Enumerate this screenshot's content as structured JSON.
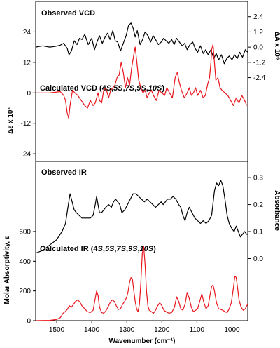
{
  "chart_data": [
    {
      "type": "line",
      "panel": "top",
      "title_observed": "Observed VCD",
      "title_calc_prefix": "Calculated VCD (4",
      "title_calc_config": [
        "S",
        "5S",
        "7S",
        "9S",
        "10S"
      ],
      "title_calc_suffix": ")",
      "left_axis_label": "Δε x 10³",
      "right_axis_label": "ΔA x 10⁶",
      "left_ticks": [
        "24",
        "12",
        "0",
        "-12",
        "-24"
      ],
      "left_tick_values": [
        24,
        12,
        0,
        -12,
        -24
      ],
      "left_ylim": [
        -27,
        36
      ],
      "right_ticks": [
        "2.4",
        "1.2",
        "0.0",
        "-1.2",
        "-2.4"
      ],
      "right_tick_values": [
        2.4,
        1.2,
        0.0,
        -1.2,
        -2.4
      ],
      "right_ylim": [
        -9.0,
        3.6
      ],
      "series": [
        {
          "role": "observed",
          "color": "#000000",
          "axis": "right",
          "x": [
            1560,
            1540,
            1520,
            1505,
            1490,
            1480,
            1470,
            1465,
            1458,
            1450,
            1442,
            1435,
            1428,
            1420,
            1410,
            1400,
            1392,
            1385,
            1378,
            1370,
            1362,
            1355,
            1348,
            1340,
            1333,
            1326,
            1318,
            1310,
            1302,
            1295,
            1288,
            1282,
            1276,
            1270,
            1262,
            1255,
            1248,
            1240,
            1232,
            1225,
            1218,
            1210,
            1202,
            1195,
            1188,
            1180,
            1172,
            1165,
            1158,
            1150,
            1142,
            1135,
            1128,
            1120,
            1112,
            1105,
            1098,
            1090,
            1082,
            1075,
            1068,
            1060,
            1052,
            1045,
            1038,
            1030,
            1022,
            1015,
            1008,
            1000,
            993,
            985,
            978,
            970,
            962,
            955
          ],
          "y": [
            0.0,
            0.1,
            0.0,
            0.05,
            0.15,
            0.3,
            -0.1,
            -0.6,
            -0.3,
            0.5,
            0.2,
            0.7,
            0.6,
            1.0,
            0.2,
            0.7,
            -0.2,
            0.4,
            0.9,
            0.3,
            0.8,
            1.1,
            0.6,
            1.3,
            0.5,
            0.4,
            -0.3,
            0.3,
            0.9,
            1.7,
            1.9,
            1.5,
            0.8,
            1.3,
            0.2,
            0.6,
            1.2,
            0.9,
            0.4,
            0.9,
            0.6,
            0.2,
            0.4,
            0.7,
            0.5,
            0.3,
            0.6,
            0.2,
            0.7,
            0.4,
            0.1,
            0.3,
            -0.2,
            0.2,
            0.4,
            -0.1,
            -0.4,
            0.1,
            -0.5,
            -0.2,
            -0.6,
            -0.2,
            -0.9,
            -0.5,
            -1.0,
            -0.6,
            -1.3,
            -0.9,
            -0.7,
            -1.0,
            -0.6,
            -0.9,
            -0.4,
            -0.8,
            -0.2,
            -0.4
          ]
        },
        {
          "role": "calculated",
          "color": "#e8161d",
          "axis": "left",
          "x": [
            1560,
            1520,
            1490,
            1480,
            1475,
            1470,
            1466,
            1462,
            1455,
            1448,
            1440,
            1430,
            1420,
            1412,
            1404,
            1396,
            1390,
            1386,
            1382,
            1378,
            1372,
            1366,
            1360,
            1352,
            1346,
            1340,
            1334,
            1328,
            1322,
            1316,
            1310,
            1304,
            1298,
            1292,
            1286,
            1280,
            1276,
            1272,
            1266,
            1260,
            1254,
            1248,
            1242,
            1236,
            1230,
            1224,
            1216,
            1208,
            1200,
            1192,
            1186,
            1178,
            1170,
            1162,
            1156,
            1150,
            1144,
            1136,
            1128,
            1122,
            1116,
            1110,
            1104,
            1098,
            1090,
            1082,
            1076,
            1070,
            1064,
            1060,
            1058,
            1054,
            1050,
            1046,
            1040,
            1034,
            1028,
            1020,
            1012,
            1004,
            996,
            988,
            980,
            972,
            964,
            958
          ],
          "y": [
            0,
            0,
            0.5,
            -1,
            -3,
            -8,
            -10,
            -5,
            1,
            0,
            -1,
            -3,
            -5,
            -6,
            -3,
            -5,
            -4,
            -2,
            0,
            -3,
            -4,
            1,
            2,
            -2,
            1,
            2,
            3,
            6,
            7,
            12,
            8,
            2,
            6,
            3,
            10,
            15,
            18,
            13,
            5,
            2,
            0,
            1,
            -2,
            0,
            1,
            -1,
            -3,
            1,
            0,
            -1,
            2,
            0,
            -2,
            6,
            8,
            4,
            1,
            -2,
            0,
            2,
            -1,
            0,
            2,
            -1,
            1,
            -2,
            -1,
            3,
            6,
            12,
            17,
            19,
            12,
            5,
            6,
            2,
            1,
            0,
            -1,
            -3,
            -5,
            -2,
            -4,
            -1,
            -3,
            -5
          ]
        }
      ]
    },
    {
      "type": "line",
      "panel": "bottom",
      "title_observed": "Observed IR",
      "title_calc_prefix": "Calculated IR (4",
      "title_calc_config": [
        "S",
        "5S",
        "7S",
        "9S",
        "10S"
      ],
      "title_calc_suffix": ")",
      "left_axis_label": "Molar Absorptivity, ε",
      "right_axis_label": "Absorbance",
      "left_ticks": [
        "600",
        "400",
        "200",
        "0"
      ],
      "left_tick_values": [
        600,
        400,
        200,
        0
      ],
      "left_ylim": [
        0,
        1072
      ],
      "right_ticks": [
        "0.3",
        "0.2",
        "0.1",
        "0.0"
      ],
      "right_tick_values": [
        0.3,
        0.2,
        0.1,
        0.0
      ],
      "right_ylim": [
        -0.23,
        0.36
      ],
      "xlabel": "Wavenumber (cm⁻¹)",
      "x_ticks": [
        "1500",
        "1400",
        "1300",
        "1200",
        "1100",
        "1000"
      ],
      "x_tick_values": [
        1500,
        1400,
        1300,
        1200,
        1100,
        1000
      ],
      "xlim": [
        1560,
        955
      ],
      "series": [
        {
          "role": "observed",
          "color": "#000000",
          "axis": "right",
          "x": [
            1560,
            1540,
            1520,
            1500,
            1485,
            1475,
            1468,
            1462,
            1456,
            1450,
            1444,
            1436,
            1428,
            1420,
            1412,
            1404,
            1396,
            1390,
            1386,
            1382,
            1378,
            1372,
            1366,
            1360,
            1352,
            1344,
            1338,
            1332,
            1326,
            1320,
            1314,
            1306,
            1298,
            1290,
            1282,
            1274,
            1266,
            1258,
            1250,
            1242,
            1234,
            1226,
            1218,
            1210,
            1202,
            1196,
            1190,
            1184,
            1176,
            1168,
            1160,
            1152,
            1146,
            1140,
            1134,
            1128,
            1122,
            1114,
            1106,
            1098,
            1090,
            1082,
            1074,
            1066,
            1058,
            1050,
            1044,
            1038,
            1032,
            1026,
            1020,
            1014,
            1008,
            1000,
            994,
            988,
            982,
            976,
            970,
            964,
            958,
            955
          ],
          "y": [
            0.02,
            0.03,
            0.05,
            0.07,
            0.1,
            0.13,
            0.19,
            0.24,
            0.21,
            0.18,
            0.17,
            0.16,
            0.15,
            0.15,
            0.15,
            0.15,
            0.16,
            0.2,
            0.23,
            0.2,
            0.17,
            0.17,
            0.18,
            0.19,
            0.2,
            0.19,
            0.21,
            0.22,
            0.21,
            0.2,
            0.17,
            0.18,
            0.2,
            0.22,
            0.24,
            0.24,
            0.23,
            0.22,
            0.21,
            0.22,
            0.21,
            0.2,
            0.19,
            0.2,
            0.21,
            0.2,
            0.21,
            0.22,
            0.22,
            0.23,
            0.22,
            0.2,
            0.19,
            0.16,
            0.14,
            0.17,
            0.19,
            0.17,
            0.15,
            0.14,
            0.13,
            0.14,
            0.13,
            0.14,
            0.16,
            0.25,
            0.28,
            0.27,
            0.29,
            0.27,
            0.22,
            0.16,
            0.13,
            0.11,
            0.1,
            0.12,
            0.1,
            0.08,
            0.09,
            0.1,
            0.09,
            0.09
          ]
        },
        {
          "role": "calculated",
          "color": "#e8161d",
          "axis": "left",
          "x": [
            1560,
            1520,
            1500,
            1490,
            1482,
            1476,
            1470,
            1464,
            1458,
            1452,
            1446,
            1440,
            1434,
            1428,
            1420,
            1412,
            1404,
            1396,
            1390,
            1386,
            1382,
            1378,
            1372,
            1366,
            1360,
            1354,
            1348,
            1342,
            1336,
            1330,
            1324,
            1318,
            1312,
            1306,
            1300,
            1296,
            1292,
            1288,
            1284,
            1280,
            1276,
            1272,
            1268,
            1264,
            1260,
            1256,
            1252,
            1248,
            1244,
            1240,
            1236,
            1230,
            1224,
            1218,
            1212,
            1206,
            1200,
            1194,
            1188,
            1180,
            1172,
            1164,
            1158,
            1152,
            1146,
            1140,
            1134,
            1128,
            1122,
            1116,
            1110,
            1104,
            1098,
            1092,
            1086,
            1080,
            1074,
            1068,
            1062,
            1058,
            1054,
            1050,
            1044,
            1038,
            1032,
            1026,
            1020,
            1014,
            1008,
            1002,
            996,
            992,
            988,
            984,
            980,
            974,
            968,
            962,
            958,
            955
          ],
          "y": [
            0,
            2,
            8,
            20,
            50,
            60,
            75,
            100,
            90,
            110,
            130,
            140,
            125,
            100,
            80,
            60,
            55,
            70,
            150,
            200,
            170,
            90,
            55,
            50,
            65,
            90,
            120,
            140,
            130,
            100,
            75,
            80,
            110,
            130,
            160,
            200,
            260,
            290,
            280,
            200,
            130,
            80,
            60,
            110,
            250,
            450,
            500,
            380,
            200,
            100,
            70,
            60,
            50,
            70,
            100,
            120,
            100,
            70,
            60,
            50,
            55,
            90,
            160,
            130,
            80,
            70,
            110,
            190,
            150,
            90,
            60,
            70,
            80,
            130,
            180,
            120,
            80,
            100,
            180,
            230,
            240,
            200,
            120,
            80,
            75,
            70,
            60,
            55,
            80,
            120,
            220,
            300,
            290,
            220,
            140,
            90,
            70,
            80,
            100,
            110
          ]
        }
      ]
    }
  ]
}
